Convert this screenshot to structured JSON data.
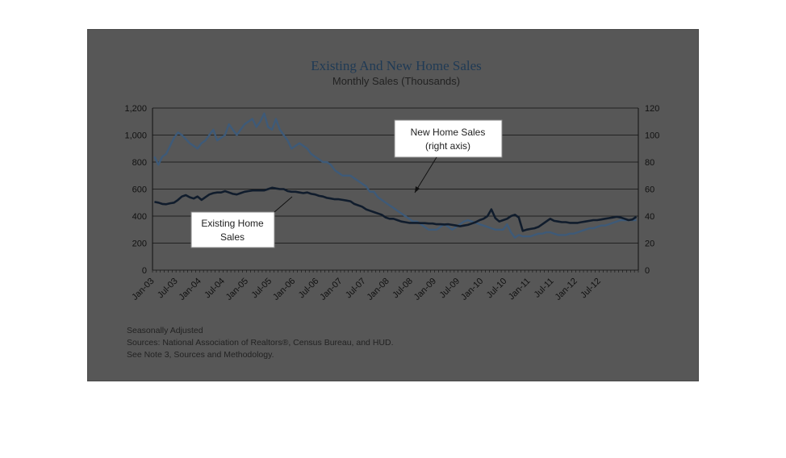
{
  "chart_data": {
    "type": "line",
    "title": "Existing And New Home Sales",
    "subtitle": "Monthly Sales (Thousands)",
    "xlabel": "",
    "ylabel": "",
    "x_tick_labels": [
      "Jan-03",
      "Jul-03",
      "Jan-04",
      "Jul-04",
      "Jan-05",
      "Jul-05",
      "Jan-06",
      "Jul-06",
      "Jan-07",
      "Jul-07",
      "Jan-08",
      "Jul-08",
      "Jan-09",
      "Jul-09",
      "Jan-10",
      "Jul-10",
      "Jan-11",
      "Jul-11",
      "Jan-12",
      "Jul-12"
    ],
    "y_left": {
      "ticks": [
        "0",
        "200",
        "400",
        "600",
        "800",
        "1,000",
        "1,200"
      ],
      "lim": [
        0,
        1200
      ]
    },
    "y_right": {
      "ticks": [
        "0",
        "20",
        "40",
        "60",
        "80",
        "100",
        "120"
      ],
      "lim": [
        0,
        120
      ]
    },
    "grid": true,
    "colors": {
      "existing": "#101c2c",
      "new": "#3e5a78"
    },
    "series": [
      {
        "name": "Existing Home Sales",
        "axis": "left",
        "x_start": "2003-01",
        "values": [
          505,
          500,
          490,
          488,
          495,
          500,
          520,
          545,
          555,
          540,
          530,
          545,
          520,
          540,
          560,
          570,
          575,
          575,
          585,
          575,
          565,
          560,
          570,
          580,
          585,
          590,
          590,
          590,
          590,
          600,
          610,
          605,
          600,
          600,
          585,
          580,
          580,
          575,
          570,
          575,
          565,
          560,
          550,
          545,
          535,
          530,
          525,
          525,
          520,
          515,
          510,
          490,
          480,
          470,
          450,
          440,
          430,
          420,
          410,
          390,
          380,
          380,
          370,
          360,
          355,
          350,
          350,
          350,
          348,
          348,
          345,
          345,
          340,
          340,
          338,
          340,
          335,
          330,
          325,
          330,
          335,
          345,
          355,
          370,
          380,
          400,
          450,
          385,
          360,
          370,
          380,
          400,
          410,
          390,
          290,
          300,
          305,
          310,
          320,
          340,
          360,
          380,
          365,
          360,
          355,
          355,
          350,
          350,
          350,
          355,
          360,
          365,
          370,
          370,
          375,
          380,
          385,
          390,
          395,
          390,
          380,
          370,
          375,
          395
        ]
      },
      {
        "name": "New Home Sales",
        "axis": "right",
        "x_start": "2003-01",
        "values": [
          84,
          78,
          84,
          86,
          92,
          98,
          102,
          100,
          97,
          94,
          92,
          90,
          94,
          96,
          100,
          104,
          96,
          98,
          100,
          108,
          104,
          100,
          104,
          108,
          110,
          112,
          106,
          110,
          116,
          106,
          104,
          112,
          104,
          100,
          96,
          90,
          92,
          94,
          92,
          90,
          86,
          84,
          82,
          80,
          80,
          78,
          74,
          72,
          70,
          70,
          70,
          68,
          66,
          64,
          62,
          58,
          58,
          54,
          52,
          50,
          48,
          46,
          44,
          42,
          40,
          38,
          36,
          36,
          34,
          32,
          30,
          30,
          30,
          32,
          34,
          32,
          30,
          32,
          34,
          36,
          37,
          36,
          35,
          34,
          33,
          32,
          31,
          30,
          30,
          30,
          34,
          28,
          24,
          26,
          25,
          25,
          25,
          26,
          27,
          27,
          28,
          28,
          27,
          26,
          26,
          26,
          27,
          27,
          28,
          29,
          30,
          31,
          31,
          32,
          33,
          33,
          34,
          35,
          36,
          37,
          37,
          37,
          37,
          37
        ]
      }
    ],
    "annotations": [
      {
        "text_lines": [
          "New Home Sales",
          "(right axis)"
        ],
        "target_series": "New Home Sales"
      },
      {
        "text_lines": [
          "Existing Home",
          "Sales"
        ],
        "target_series": "Existing Home Sales"
      }
    ],
    "notes": [
      "Seasonally Adjusted",
      "Sources:  National Association of Realtors®, Census Bureau, and HUD.",
      "See Note 3, Sources and Methodology."
    ]
  }
}
